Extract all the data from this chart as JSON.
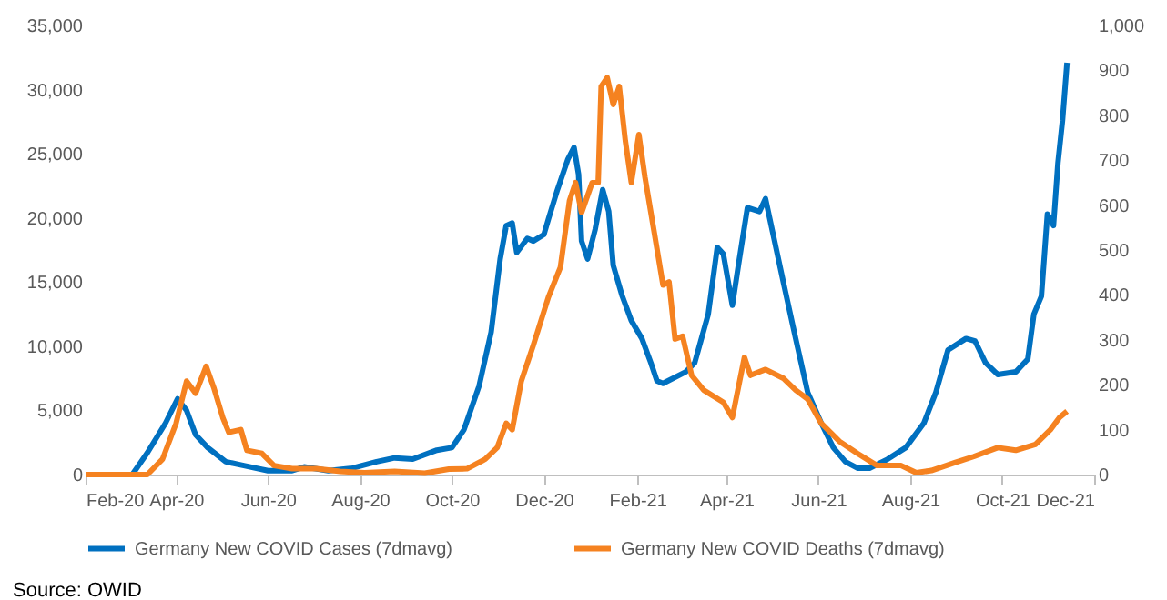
{
  "chart_data": {
    "type": "line",
    "xlim": [
      "2020-02-01",
      "2021-12-01"
    ],
    "xticks": [
      {
        "value": "2020-02-01",
        "label": "Feb-20"
      },
      {
        "value": "2020-04-01",
        "label": "Apr-20"
      },
      {
        "value": "2020-06-01",
        "label": "Jun-20"
      },
      {
        "value": "2020-08-01",
        "label": "Aug-20"
      },
      {
        "value": "2020-10-01",
        "label": "Oct-20"
      },
      {
        "value": "2020-12-01",
        "label": "Dec-20"
      },
      {
        "value": "2021-02-01",
        "label": "Feb-21"
      },
      {
        "value": "2021-04-01",
        "label": "Apr-21"
      },
      {
        "value": "2021-06-01",
        "label": "Jun-21"
      },
      {
        "value": "2021-08-01",
        "label": "Aug-21"
      },
      {
        "value": "2021-10-01",
        "label": "Oct-21"
      },
      {
        "value": "2021-12-01",
        "label": "Dec-21"
      }
    ],
    "ylim": [
      0,
      35000
    ],
    "yticks": [
      {
        "value": 0,
        "label": "0"
      },
      {
        "value": 5000,
        "label": "5,000"
      },
      {
        "value": 10000,
        "label": "10,000"
      },
      {
        "value": 15000,
        "label": "15,000"
      },
      {
        "value": 20000,
        "label": "20,000"
      },
      {
        "value": 25000,
        "label": "25,000"
      },
      {
        "value": 30000,
        "label": "30,000"
      },
      {
        "value": 35000,
        "label": "35,000"
      }
    ],
    "y2lim": [
      0,
      1000
    ],
    "y2ticks": [
      0,
      100,
      200,
      300,
      400,
      500,
      600,
      700,
      800,
      900,
      {
        "value": 1000,
        "label": "1,000"
      }
    ],
    "grid": false,
    "legend": "bottom",
    "marker": "none",
    "line_style": "solid",
    "annotations": [
      "Source: OWID"
    ],
    "series": [
      {
        "name": "Germany New COVID Cases (7dmavg)",
        "color": "#0070c0",
        "x": [
          "2020-02-01",
          "2020-03-03",
          "2020-03-13",
          "2020-03-25",
          "2020-04-02",
          "2020-04-08",
          "2020-04-14",
          "2020-04-22",
          "2020-05-04",
          "2020-05-16",
          "2020-06-01",
          "2020-06-17",
          "2020-06-25",
          "2020-07-11",
          "2020-07-27",
          "2020-08-12",
          "2020-08-24",
          "2020-09-05",
          "2020-09-21",
          "2020-10-01",
          "2020-10-09",
          "2020-10-19",
          "2020-10-27",
          "2020-11-02",
          "2020-11-06",
          "2020-11-10",
          "2020-11-13",
          "2020-11-20",
          "2020-11-24",
          "2020-12-01",
          "2020-12-04",
          "2020-12-10",
          "2020-12-17",
          "2020-12-21",
          "2020-12-24",
          "2020-12-26",
          "2020-12-30",
          "2021-01-04",
          "2021-01-09",
          "2021-01-13",
          "2021-01-16",
          "2021-01-22",
          "2021-01-28",
          "2021-02-04",
          "2021-02-10",
          "2021-02-14",
          "2021-02-18",
          "2021-03-05",
          "2021-03-11",
          "2021-03-20",
          "2021-03-26",
          "2021-03-30",
          "2021-04-05",
          "2021-04-09",
          "2021-04-15",
          "2021-04-23",
          "2021-04-27",
          "2021-05-03",
          "2021-05-09",
          "2021-05-17",
          "2021-05-25",
          "2021-06-03",
          "2021-06-11",
          "2021-06-19",
          "2021-06-27",
          "2021-07-05",
          "2021-07-17",
          "2021-07-29",
          "2021-08-10",
          "2021-08-18",
          "2021-08-26",
          "2021-09-07",
          "2021-09-13",
          "2021-09-20",
          "2021-09-28",
          "2021-10-10",
          "2021-10-18",
          "2021-10-22",
          "2021-10-27",
          "2021-10-31",
          "2021-11-04",
          "2021-11-07",
          "2021-11-10",
          "2021-11-13"
        ],
        "values": [
          0,
          0,
          1700,
          4000,
          5900,
          5000,
          3100,
          2100,
          1000,
          700,
          300,
          300,
          600,
          300,
          500,
          1000,
          1300,
          1200,
          1900,
          2100,
          3500,
          6900,
          11100,
          16800,
          19400,
          19600,
          17300,
          18400,
          18200,
          18700,
          19900,
          22200,
          24600,
          25500,
          23400,
          18200,
          16800,
          19100,
          22200,
          20500,
          16300,
          13900,
          12000,
          10600,
          8700,
          7300,
          7100,
          8000,
          8700,
          12500,
          17700,
          17200,
          13200,
          16300,
          20800,
          20500,
          21500,
          18200,
          14900,
          10600,
          6400,
          4000,
          2100,
          1000,
          500,
          500,
          1200,
          2100,
          4000,
          6400,
          9700,
          10600,
          10400,
          8700,
          7800,
          8000,
          9000,
          12500,
          13900,
          20300,
          19400,
          24300,
          27600,
          32100
        ]
      },
      {
        "name": "Germany New COVID Deaths (7dmavg)",
        "color": "#f58220",
        "axis": "y2",
        "x": [
          "2020-02-01",
          "2020-03-13",
          "2020-03-23",
          "2020-04-01",
          "2020-04-08",
          "2020-04-14",
          "2020-04-21",
          "2020-04-26",
          "2020-05-02",
          "2020-05-06",
          "2020-05-14",
          "2020-05-18",
          "2020-05-28",
          "2020-06-05",
          "2020-06-17",
          "2020-07-03",
          "2020-07-19",
          "2020-08-04",
          "2020-08-24",
          "2020-09-13",
          "2020-09-29",
          "2020-10-11",
          "2020-10-23",
          "2020-10-31",
          "2020-11-06",
          "2020-11-10",
          "2020-11-16",
          "2020-11-24",
          "2020-12-04",
          "2020-12-12",
          "2020-12-18",
          "2020-12-22",
          "2020-12-26",
          "2021-01-02",
          "2021-01-06",
          "2021-01-08",
          "2021-01-12",
          "2021-01-16",
          "2021-01-20",
          "2021-01-24",
          "2021-01-28",
          "2021-02-02",
          "2021-02-06",
          "2021-02-12",
          "2021-02-18",
          "2021-02-22",
          "2021-02-26",
          "2021-03-03",
          "2021-03-09",
          "2021-03-17",
          "2021-03-30",
          "2021-04-05",
          "2021-04-09",
          "2021-04-13",
          "2021-04-17",
          "2021-04-27",
          "2021-05-09",
          "2021-05-17",
          "2021-05-25",
          "2021-06-03",
          "2021-06-15",
          "2021-06-27",
          "2021-07-10",
          "2021-07-26",
          "2021-08-05",
          "2021-08-15",
          "2021-08-31",
          "2021-09-12",
          "2021-09-28",
          "2021-10-10",
          "2021-10-23",
          "2021-11-02",
          "2021-11-08",
          "2021-11-13"
        ],
        "values": [
          0,
          0,
          34,
          114,
          208,
          181,
          241,
          194,
          127,
          94,
          100,
          54,
          47,
          20,
          13,
          13,
          7,
          4,
          7,
          3,
          12,
          13,
          34,
          60,
          114,
          100,
          208,
          288,
          395,
          462,
          610,
          650,
          583,
          650,
          650,
          864,
          884,
          824,
          864,
          744,
          650,
          757,
          663,
          543,
          422,
          429,
          302,
          308,
          221,
          188,
          161,
          127,
          194,
          261,
          221,
          234,
          214,
          188,
          168,
          114,
          74,
          47,
          20,
          20,
          4,
          9,
          27,
          40,
          60,
          54,
          67,
          100,
          127,
          141
        ]
      }
    ]
  }
}
